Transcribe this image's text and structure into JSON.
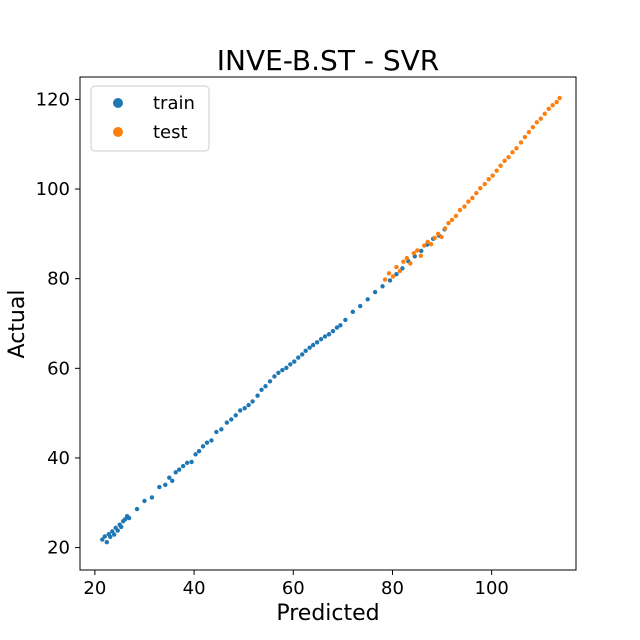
{
  "chart_data": {
    "type": "scatter",
    "title": "INVE-B.ST - SVR",
    "xlabel": "Predicted",
    "ylabel": "Actual",
    "xlim": [
      17,
      117
    ],
    "ylim": [
      15,
      125
    ],
    "xticks": [
      20,
      40,
      60,
      80,
      100
    ],
    "yticks": [
      20,
      40,
      60,
      80,
      100,
      120
    ],
    "grid": false,
    "legend_position": "top-left",
    "series": [
      {
        "name": "train",
        "color": "#1f77b4",
        "points": [
          [
            21.5,
            21.8
          ],
          [
            22.0,
            22.5
          ],
          [
            22.4,
            21.2
          ],
          [
            22.8,
            23.0
          ],
          [
            23.1,
            22.4
          ],
          [
            23.5,
            23.6
          ],
          [
            23.9,
            22.9
          ],
          [
            24.2,
            24.4
          ],
          [
            24.6,
            23.8
          ],
          [
            25.0,
            25.1
          ],
          [
            25.3,
            24.6
          ],
          [
            25.7,
            25.9
          ],
          [
            26.1,
            26.3
          ],
          [
            26.5,
            27.0
          ],
          [
            26.9,
            26.6
          ],
          [
            28.5,
            28.6
          ],
          [
            30.0,
            30.4
          ],
          [
            31.5,
            31.2
          ],
          [
            33.0,
            33.5
          ],
          [
            34.2,
            34.0
          ],
          [
            35.0,
            35.6
          ],
          [
            35.6,
            34.9
          ],
          [
            36.3,
            36.8
          ],
          [
            37.0,
            37.4
          ],
          [
            37.8,
            38.2
          ],
          [
            38.6,
            38.9
          ],
          [
            39.5,
            39.1
          ],
          [
            40.3,
            40.8
          ],
          [
            41.0,
            41.5
          ],
          [
            41.8,
            42.6
          ],
          [
            42.6,
            43.4
          ],
          [
            43.5,
            43.9
          ],
          [
            44.5,
            45.8
          ],
          [
            45.5,
            46.4
          ],
          [
            46.6,
            47.9
          ],
          [
            47.5,
            48.6
          ],
          [
            48.4,
            49.5
          ],
          [
            49.3,
            50.6
          ],
          [
            50.2,
            51.1
          ],
          [
            51.0,
            51.8
          ],
          [
            51.8,
            52.6
          ],
          [
            52.8,
            53.9
          ],
          [
            53.6,
            55.2
          ],
          [
            54.4,
            56.0
          ],
          [
            55.3,
            57.1
          ],
          [
            56.2,
            58.2
          ],
          [
            57.0,
            59.0
          ],
          [
            57.8,
            59.6
          ],
          [
            58.6,
            60.1
          ],
          [
            59.4,
            60.9
          ],
          [
            60.2,
            61.5
          ],
          [
            61.0,
            62.4
          ],
          [
            61.8,
            63.1
          ],
          [
            62.5,
            63.9
          ],
          [
            63.3,
            64.6
          ],
          [
            64.0,
            65.2
          ],
          [
            64.8,
            65.8
          ],
          [
            65.6,
            66.5
          ],
          [
            66.4,
            67.1
          ],
          [
            67.2,
            67.6
          ],
          [
            68.0,
            68.3
          ],
          [
            68.8,
            69.1
          ],
          [
            69.5,
            69.6
          ],
          [
            70.5,
            70.8
          ],
          [
            72.0,
            72.6
          ],
          [
            73.5,
            73.9
          ],
          [
            75.0,
            75.4
          ],
          [
            76.5,
            77.0
          ],
          [
            78.0,
            78.3
          ],
          [
            79.5,
            79.6
          ],
          [
            80.8,
            81.0
          ],
          [
            82.0,
            82.3
          ],
          [
            83.2,
            83.9
          ],
          [
            84.5,
            85.0
          ],
          [
            85.8,
            86.2
          ],
          [
            87.0,
            87.6
          ],
          [
            88.2,
            88.9
          ],
          [
            89.4,
            89.6
          ],
          [
            90.5,
            91.0
          ]
        ]
      },
      {
        "name": "test",
        "color": "#ff7f0e",
        "points": [
          [
            78.5,
            79.8
          ],
          [
            79.3,
            81.2
          ],
          [
            80.1,
            80.5
          ],
          [
            80.8,
            82.6
          ],
          [
            81.5,
            81.7
          ],
          [
            82.2,
            83.8
          ],
          [
            82.9,
            84.6
          ],
          [
            83.6,
            83.4
          ],
          [
            84.3,
            85.7
          ],
          [
            85.0,
            86.3
          ],
          [
            85.7,
            85.1
          ],
          [
            86.4,
            87.4
          ],
          [
            87.1,
            88.2
          ],
          [
            87.8,
            87.7
          ],
          [
            88.5,
            89.1
          ],
          [
            89.2,
            90.0
          ],
          [
            89.9,
            89.3
          ],
          [
            90.6,
            91.2
          ],
          [
            91.3,
            92.4
          ],
          [
            92.0,
            93.1
          ],
          [
            92.8,
            94.0
          ],
          [
            93.6,
            95.3
          ],
          [
            94.5,
            96.1
          ],
          [
            95.3,
            97.2
          ],
          [
            96.1,
            98.0
          ],
          [
            96.9,
            99.1
          ],
          [
            97.7,
            100.2
          ],
          [
            98.6,
            101.1
          ],
          [
            99.4,
            102.2
          ],
          [
            100.2,
            103.0
          ],
          [
            101.0,
            104.1
          ],
          [
            101.8,
            105.2
          ],
          [
            102.6,
            106.3
          ],
          [
            103.4,
            107.1
          ],
          [
            104.2,
            108.2
          ],
          [
            105.0,
            109.1
          ],
          [
            105.9,
            110.4
          ],
          [
            106.7,
            111.6
          ],
          [
            107.5,
            112.7
          ],
          [
            108.3,
            113.8
          ],
          [
            109.1,
            114.9
          ],
          [
            109.9,
            115.7
          ],
          [
            110.7,
            116.8
          ],
          [
            111.5,
            117.9
          ],
          [
            112.3,
            118.7
          ],
          [
            113.1,
            119.4
          ],
          [
            113.7,
            120.3
          ]
        ]
      }
    ]
  }
}
